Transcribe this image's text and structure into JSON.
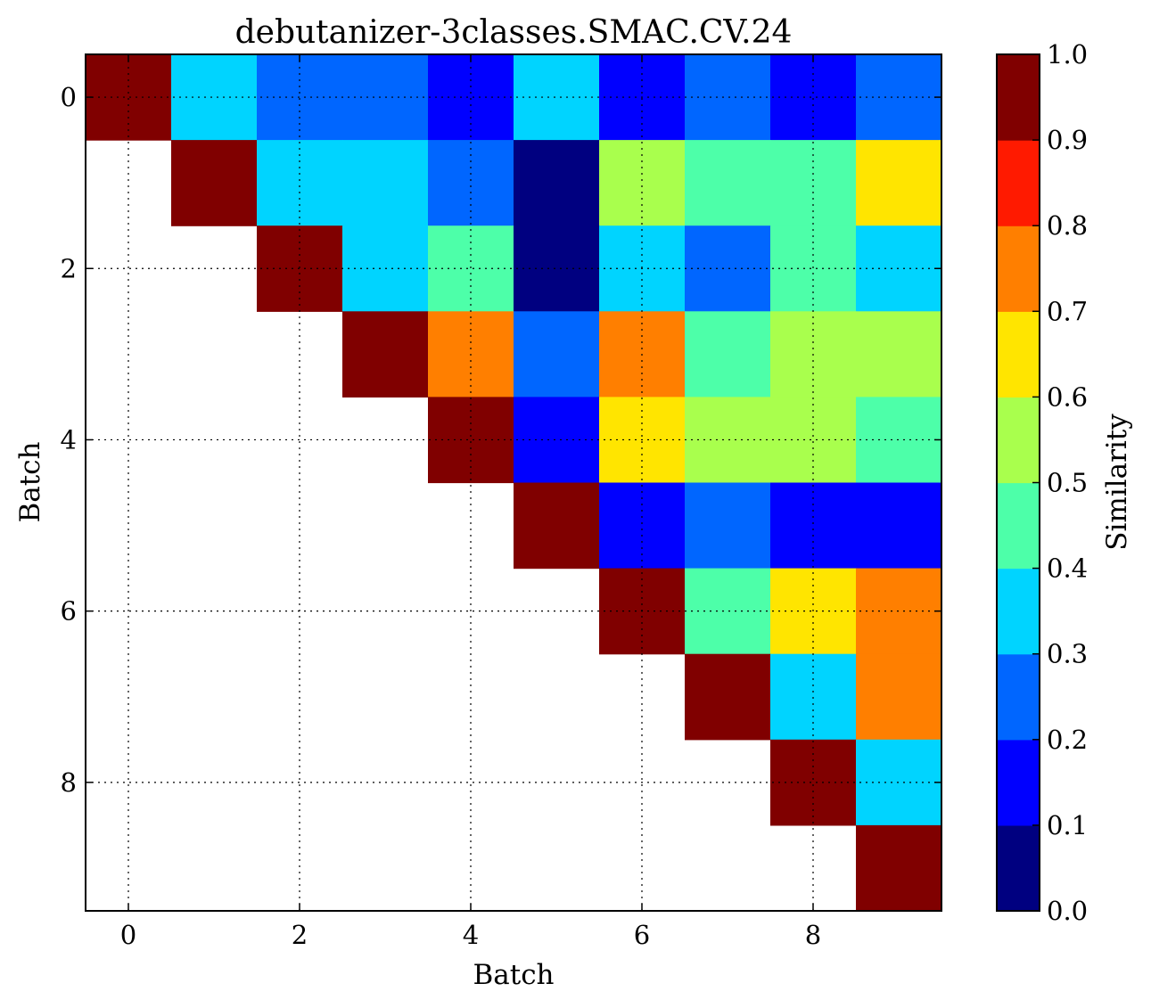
{
  "chart_data": {
    "type": "heatmap",
    "title": "debutanizer-3classes.SMAC.CV.24",
    "xlabel": "Batch",
    "ylabel": "Batch",
    "x_ticks": [
      "0",
      "2",
      "4",
      "6",
      "8"
    ],
    "y_ticks": [
      "0",
      "2",
      "4",
      "6",
      "8"
    ],
    "x_range": [
      -0.5,
      9.5
    ],
    "y_range": [
      -0.5,
      9.5
    ],
    "grid": true,
    "colorbar": {
      "label": "Similarity",
      "range": [
        0.0,
        1.0
      ],
      "ticks": [
        "0.0",
        "0.1",
        "0.2",
        "0.3",
        "0.4",
        "0.5",
        "0.6",
        "0.7",
        "0.8",
        "0.9",
        "1.0"
      ],
      "colors": [
        "#000080",
        "#0000ff",
        "#0066ff",
        "#00d4ff",
        "#4dffa9",
        "#a9ff4d",
        "#ffe500",
        "#ff7f00",
        "#ff1a00",
        "#800000"
      ]
    },
    "matrix": [
      [
        1.0,
        0.35,
        0.25,
        0.25,
        0.15,
        0.35,
        0.15,
        0.25,
        0.15,
        0.25
      ],
      [
        null,
        1.0,
        0.35,
        0.35,
        0.25,
        0.05,
        0.55,
        0.45,
        0.45,
        0.65
      ],
      [
        null,
        null,
        1.0,
        0.35,
        0.45,
        0.05,
        0.35,
        0.25,
        0.45,
        0.35
      ],
      [
        null,
        null,
        null,
        1.0,
        0.75,
        0.25,
        0.75,
        0.45,
        0.55,
        0.55
      ],
      [
        null,
        null,
        null,
        null,
        1.0,
        0.15,
        0.65,
        0.55,
        0.55,
        0.45
      ],
      [
        null,
        null,
        null,
        null,
        null,
        1.0,
        0.15,
        0.25,
        0.15,
        0.15
      ],
      [
        null,
        null,
        null,
        null,
        null,
        null,
        1.0,
        0.45,
        0.65,
        0.75
      ],
      [
        null,
        null,
        null,
        null,
        null,
        null,
        null,
        1.0,
        0.35,
        0.75
      ],
      [
        null,
        null,
        null,
        null,
        null,
        null,
        null,
        null,
        1.0,
        0.35
      ],
      [
        null,
        null,
        null,
        null,
        null,
        null,
        null,
        null,
        null,
        1.0
      ]
    ]
  }
}
